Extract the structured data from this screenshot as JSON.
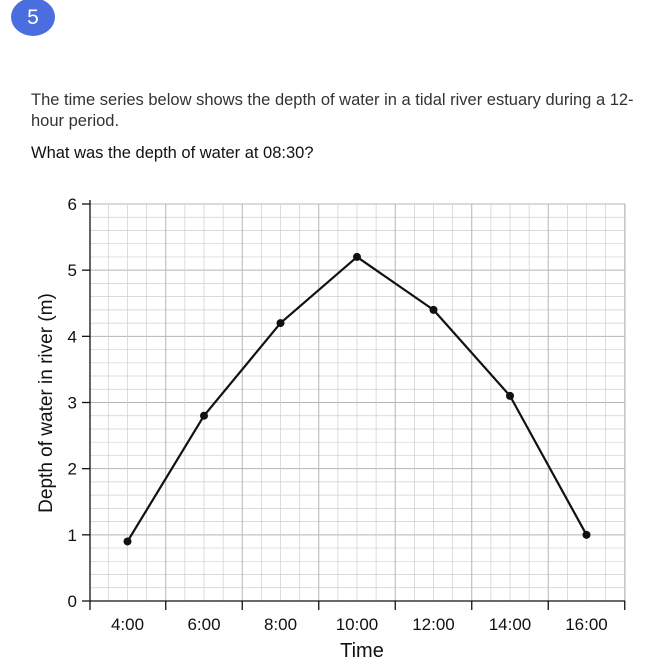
{
  "question_number": "5",
  "intro_text": "The time series below shows the depth of water in a tidal river estuary during a 12-hour period.",
  "question_text": "What was the depth of water at 08:30?",
  "colors": {
    "badge": "#4a6ee0",
    "line": "#111111",
    "grid": "#cfcfcf"
  },
  "chart_data": {
    "type": "line",
    "title": "",
    "xlabel": "Time",
    "ylabel": "Depth of water in river (m)",
    "x": [
      "4:00",
      "6:00",
      "8:00",
      "10:00",
      "12:00",
      "14:00",
      "16:00"
    ],
    "series": [
      {
        "name": "",
        "values": [
          0.9,
          2.8,
          4.2,
          5.2,
          4.4,
          3.1,
          1.0
        ]
      }
    ],
    "ylim": [
      0,
      6
    ],
    "yticks": [
      "0",
      "1",
      "2",
      "3",
      "4",
      "5",
      "6"
    ],
    "grid": true
  }
}
